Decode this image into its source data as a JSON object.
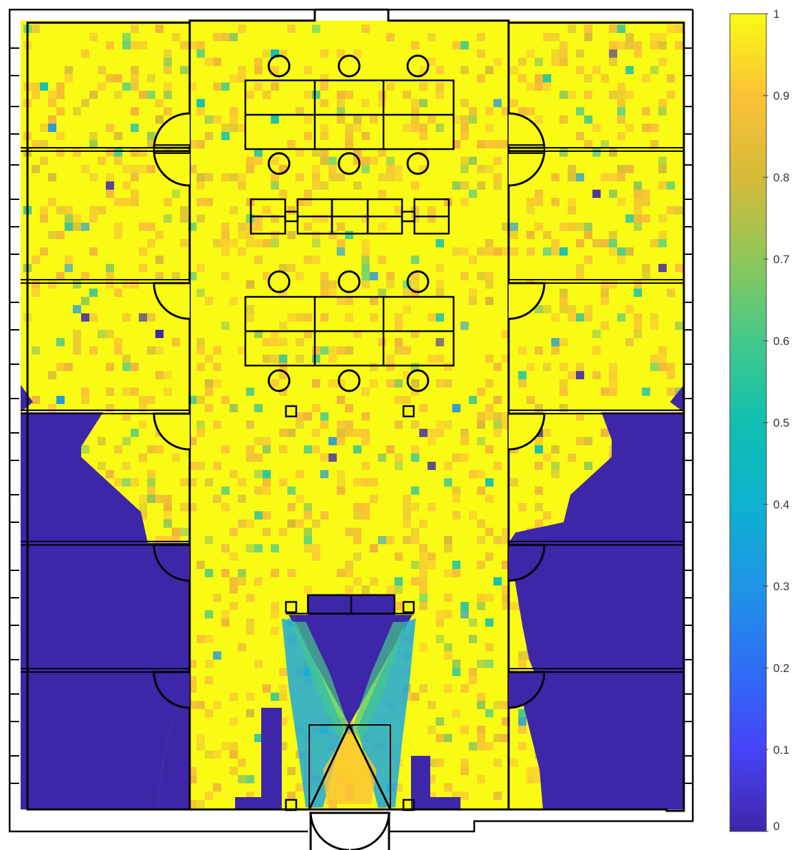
{
  "chart_data": {
    "type": "heatmap",
    "title": "",
    "xlabel": "",
    "ylabel": "",
    "colormap": "parula",
    "color_range": [
      0,
      1
    ],
    "colorbar": {
      "placement": "right",
      "ticks": [
        0,
        0.1,
        0.2,
        0.3,
        0.4,
        0.5,
        0.6,
        0.7,
        0.8,
        0.9,
        1
      ],
      "tick_labels": [
        "0",
        "0.1",
        "0.2",
        "0.3",
        "0.4",
        "0.5",
        "0.6",
        "0.7",
        "0.8",
        "0.9",
        "1"
      ]
    },
    "grid": false,
    "background_note_values": {
      "upper_offices": 0.95,
      "corridor": 0.92,
      "lower_office_zones": 0.0,
      "entry_funnel": 0.45
    }
  },
  "colors": {
    "parula_low": "#3e26a8",
    "parula_mid": "#17bfb3",
    "parula_high": "#f9fb15",
    "walls": "#000000"
  }
}
